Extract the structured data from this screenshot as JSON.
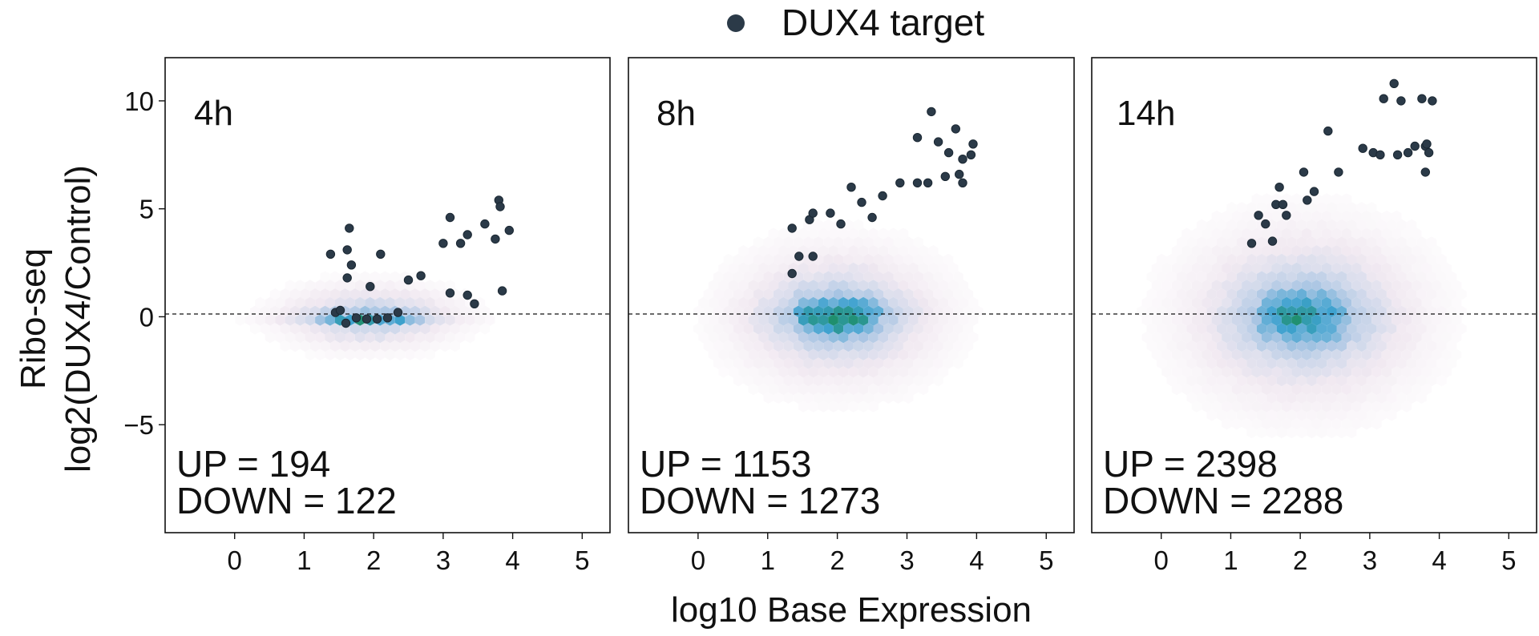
{
  "chart_data": {
    "type": "scatter",
    "description": "MA-style hexbin density plots with DUX4 target genes overlaid as points",
    "legend": {
      "label": "DUX4 target",
      "color": "#2b3a48",
      "position": "top-center"
    },
    "xlabel": "log10 Base Expression",
    "ylabel_line1": "Ribo-seq",
    "ylabel_line2": "log2(DUX4/Control)",
    "xlim": [
      -1.0,
      5.4
    ],
    "ylim": [
      -10.0,
      12.0
    ],
    "xticks": [
      0,
      1,
      2,
      3,
      4,
      5
    ],
    "yticks": [
      -5,
      0,
      5,
      10
    ],
    "reference_line": {
      "y": 0,
      "style": "dashed"
    },
    "density_colors": {
      "low": "#f1e9f1",
      "mid": "#a9c5e3",
      "high": "#3ea2cf",
      "peak": "#1f8f6e"
    },
    "panels": [
      {
        "label": "4h",
        "up_label": "UP = 194",
        "down_label": "DOWN = 122",
        "density": {
          "center_x": 1.95,
          "spread_x": 1.15,
          "spread_y": 1.35,
          "core_spread_y": 0.18,
          "core_x_range": [
            1.1,
            2.7
          ],
          "intensity": "high"
        },
        "points": [
          [
            1.38,
            2.9
          ],
          [
            1.65,
            4.1
          ],
          [
            1.62,
            3.1
          ],
          [
            1.68,
            2.4
          ],
          [
            1.62,
            1.8
          ],
          [
            2.1,
            2.9
          ],
          [
            1.95,
            1.4
          ],
          [
            2.5,
            1.7
          ],
          [
            2.68,
            1.9
          ],
          [
            1.45,
            0.2
          ],
          [
            1.52,
            0.3
          ],
          [
            1.6,
            -0.3
          ],
          [
            1.75,
            -0.05
          ],
          [
            1.9,
            -0.1
          ],
          [
            2.05,
            -0.1
          ],
          [
            2.2,
            -0.05
          ],
          [
            2.35,
            0.2
          ],
          [
            3.0,
            3.4
          ],
          [
            3.1,
            4.6
          ],
          [
            3.25,
            3.4
          ],
          [
            3.35,
            3.8
          ],
          [
            3.6,
            4.3
          ],
          [
            3.75,
            3.6
          ],
          [
            3.8,
            5.4
          ],
          [
            3.82,
            5.1
          ],
          [
            3.95,
            4.0
          ],
          [
            3.1,
            1.1
          ],
          [
            3.35,
            1.0
          ],
          [
            3.45,
            0.6
          ],
          [
            3.85,
            1.2
          ]
        ]
      },
      {
        "label": "8h",
        "up_label": "UP = 1153",
        "down_label": "DOWN = 1273",
        "density": {
          "center_x": 2.0,
          "spread_x": 1.35,
          "spread_y": 2.9,
          "core_spread_y": 0.9,
          "core_x_range": [
            1.4,
            2.6
          ],
          "intensity": "medium"
        },
        "points": [
          [
            1.35,
            2.0
          ],
          [
            1.45,
            2.8
          ],
          [
            1.35,
            4.1
          ],
          [
            1.6,
            4.5
          ],
          [
            1.65,
            4.8
          ],
          [
            1.65,
            2.8
          ],
          [
            1.9,
            4.8
          ],
          [
            2.05,
            4.3
          ],
          [
            2.2,
            6.0
          ],
          [
            2.35,
            5.3
          ],
          [
            2.5,
            4.6
          ],
          [
            2.65,
            5.6
          ],
          [
            2.9,
            6.2
          ],
          [
            3.15,
            6.2
          ],
          [
            3.3,
            6.2
          ],
          [
            3.15,
            8.3
          ],
          [
            3.35,
            9.5
          ],
          [
            3.45,
            8.1
          ],
          [
            3.55,
            6.5
          ],
          [
            3.6,
            7.6
          ],
          [
            3.7,
            8.7
          ],
          [
            3.75,
            6.6
          ],
          [
            3.8,
            7.3
          ],
          [
            3.8,
            6.2
          ],
          [
            3.92,
            7.5
          ],
          [
            3.95,
            8.0
          ]
        ]
      },
      {
        "label": "14h",
        "up_label": "UP = 2398",
        "down_label": "DOWN = 2288",
        "density": {
          "center_x": 2.05,
          "spread_x": 1.55,
          "spread_y": 3.8,
          "core_spread_y": 1.3,
          "core_x_range": [
            1.4,
            2.7
          ],
          "intensity": "medium-low"
        },
        "points": [
          [
            1.3,
            3.4
          ],
          [
            1.4,
            4.7
          ],
          [
            1.5,
            4.3
          ],
          [
            1.6,
            3.5
          ],
          [
            1.65,
            5.2
          ],
          [
            1.7,
            6.0
          ],
          [
            1.75,
            5.2
          ],
          [
            1.8,
            4.7
          ],
          [
            2.05,
            6.7
          ],
          [
            2.1,
            5.4
          ],
          [
            2.2,
            5.8
          ],
          [
            2.4,
            8.6
          ],
          [
            2.55,
            6.7
          ],
          [
            2.9,
            7.8
          ],
          [
            3.05,
            7.6
          ],
          [
            3.15,
            7.5
          ],
          [
            3.2,
            10.1
          ],
          [
            3.35,
            10.8
          ],
          [
            3.45,
            10.0
          ],
          [
            3.4,
            7.5
          ],
          [
            3.55,
            7.6
          ],
          [
            3.65,
            7.9
          ],
          [
            3.75,
            10.1
          ],
          [
            3.8,
            7.9
          ],
          [
            3.85,
            7.6
          ],
          [
            3.9,
            10.0
          ],
          [
            3.8,
            6.7
          ],
          [
            3.82,
            8.0
          ]
        ]
      }
    ]
  }
}
